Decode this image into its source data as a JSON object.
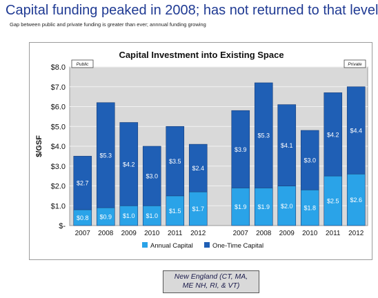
{
  "slide": {
    "title": "Capital funding peaked in 2008; has not returned to that level",
    "subtitle": "Gap between public and private funding is greater than ever; annnual funding growing",
    "footnote_line1": "New England  (CT, MA,",
    "footnote_line2": "ME NH, RI, & VT)"
  },
  "colors": {
    "annual": "#2aa3e8",
    "one_time": "#1f5fb5",
    "plot_bg": "#d9d9d9",
    "title": "#1f3a93"
  },
  "chart_data": {
    "type": "bar",
    "stacked": true,
    "title": "Capital Investment into Existing Space",
    "ylabel": "$/GSF",
    "ylim": [
      0,
      8
    ],
    "yticks": [
      0,
      1,
      2,
      3,
      4,
      5,
      6,
      7,
      8
    ],
    "ytick_labels": [
      "$-",
      "$1.0",
      "$2.0",
      "$3.0",
      "$4.0",
      "$5.0",
      "$6.0",
      "$7.0",
      "$8.0"
    ],
    "grid": true,
    "legend_position": "bottom",
    "groups": [
      {
        "label": "Public",
        "categories": [
          "2007",
          "2008",
          "2009",
          "2010",
          "2011",
          "2012"
        ],
        "series": [
          {
            "name": "Annual Capital",
            "values": [
              0.8,
              0.9,
              1.0,
              1.0,
              1.5,
              1.7
            ],
            "labels": [
              "$0.8",
              "$0.9",
              "$1.0",
              "$1.0",
              "$1.5",
              "$1.7"
            ]
          },
          {
            "name": "One-Time Capital",
            "values": [
              2.7,
              5.3,
              4.2,
              3.0,
              3.5,
              2.4
            ],
            "labels": [
              "$2.7",
              "$5.3",
              "$4.2",
              "$3.0",
              "$3.5",
              "$2.4"
            ]
          }
        ]
      },
      {
        "label": "Private",
        "categories": [
          "2007",
          "2008",
          "2009",
          "2010",
          "2011",
          "2012"
        ],
        "series": [
          {
            "name": "Annual Capital",
            "values": [
              1.9,
              1.9,
              2.0,
              1.8,
              2.5,
              2.6
            ],
            "labels": [
              "$1.9",
              "$1.9",
              "$2.0",
              "$1.8",
              "$2.5",
              "$2.6"
            ]
          },
          {
            "name": "One-Time Capital",
            "values": [
              3.9,
              5.3,
              4.1,
              3.0,
              4.2,
              4.4
            ],
            "labels": [
              "$3.9",
              "$5.3",
              "$4.1",
              "$3.0",
              "$4.2",
              "$4.4"
            ]
          }
        ]
      }
    ],
    "legend": [
      "Annual Capital",
      "One-Time Capital"
    ]
  }
}
